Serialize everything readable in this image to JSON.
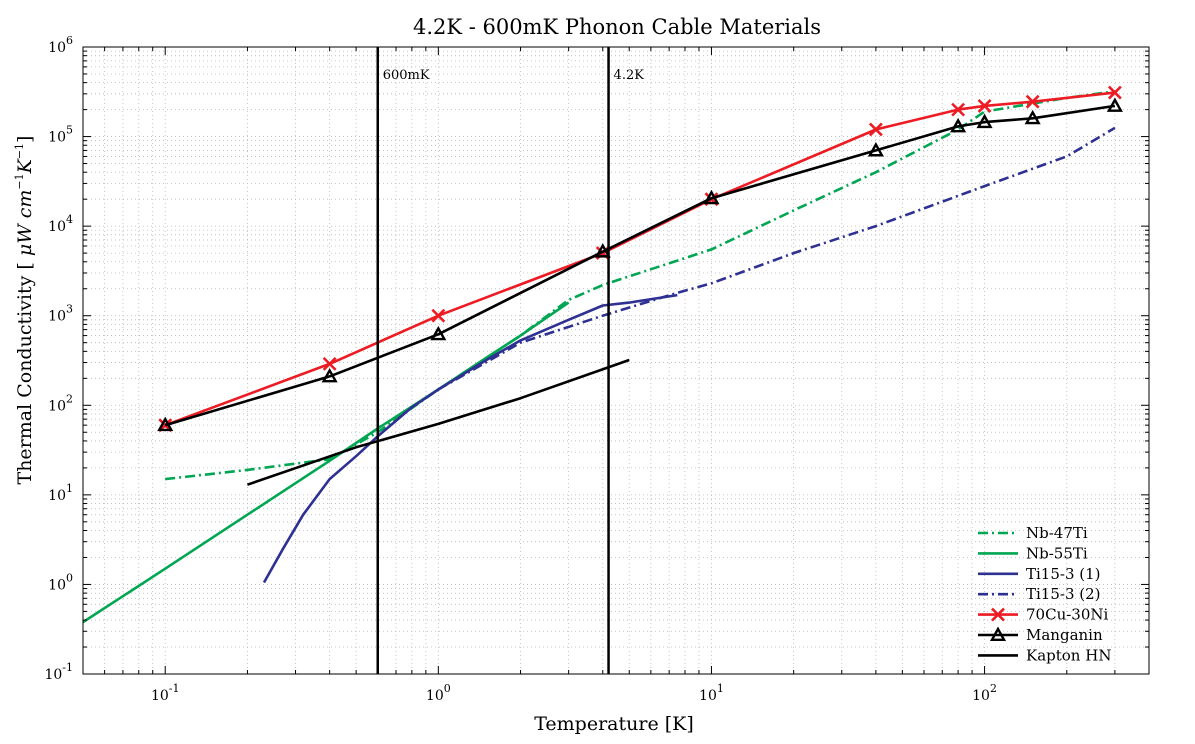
{
  "chart_data": {
    "type": "line",
    "title": "4.2K - 600mK Phonon Cable Materials",
    "xlabel": "Temperature [K]",
    "ylabel_text": "Thermal Conductivity [ ",
    "ylabel_math": "μW cm",
    "ylabel_exp1": "−1",
    "ylabel_k": "K",
    "ylabel_exp2": "−1",
    "ylabel_end": "]",
    "x_scale": "log",
    "y_scale": "log",
    "xlim": [
      0.05,
      400
    ],
    "ylim": [
      0.1,
      1000000
    ],
    "grid": true,
    "legend_position": "bottom-right",
    "x_ticks": [
      {
        "base": "10",
        "exp": "-1",
        "value": 0.1
      },
      {
        "base": "10",
        "exp": "0",
        "value": 1
      },
      {
        "base": "10",
        "exp": "1",
        "value": 10
      },
      {
        "base": "10",
        "exp": "2",
        "value": 100
      }
    ],
    "y_ticks": [
      {
        "base": "10",
        "exp": "-1",
        "value": 0.1
      },
      {
        "base": "10",
        "exp": "0",
        "value": 1
      },
      {
        "base": "10",
        "exp": "1",
        "value": 10
      },
      {
        "base": "10",
        "exp": "2",
        "value": 100
      },
      {
        "base": "10",
        "exp": "3",
        "value": 1000
      },
      {
        "base": "10",
        "exp": "4",
        "value": 10000
      },
      {
        "base": "10",
        "exp": "5",
        "value": 100000
      },
      {
        "base": "10",
        "exp": "6",
        "value": 1000000
      }
    ],
    "annotations": [
      {
        "x": 0.6,
        "label": "600mK"
      },
      {
        "x": 4.2,
        "label": "4.2K"
      }
    ],
    "series": [
      {
        "name": "Nb-47Ti",
        "color": "#00a651",
        "dash": "dashdot",
        "marker": "none",
        "x": [
          0.1,
          0.2,
          0.4,
          0.6,
          1,
          2,
          3,
          4,
          10,
          20,
          40,
          80,
          100,
          200,
          300
        ],
        "y": [
          15,
          19,
          25,
          50,
          150,
          600,
          1500,
          2200,
          5500,
          15000,
          40000,
          120000,
          190000,
          270000,
          320000
        ]
      },
      {
        "name": "Nb-55Ti",
        "color": "#00a651",
        "dash": "solid",
        "marker": "none",
        "x": [
          0.05,
          0.1,
          0.2,
          0.4,
          0.6,
          1,
          1.5,
          2,
          3
        ],
        "y": [
          0.38,
          1.5,
          6,
          24,
          55,
          150,
          340,
          600,
          1400
        ]
      },
      {
        "name": "Ti15-3 (1)",
        "color": "#2e3192",
        "dash": "solid",
        "marker": "none",
        "x": [
          0.23,
          0.27,
          0.32,
          0.4,
          0.5,
          0.6,
          0.8,
          1,
          1.5,
          2,
          3,
          4,
          5,
          7.5
        ],
        "y": [
          1.05,
          2.5,
          6,
          15,
          27,
          45,
          95,
          150,
          320,
          530,
          900,
          1300,
          1400,
          1700
        ]
      },
      {
        "name": "Ti15-3 (2)",
        "color": "#2e3192",
        "dash": "dashdot",
        "marker": "none",
        "x": [
          1,
          2,
          4,
          7.5,
          10,
          20,
          40,
          100,
          200,
          300
        ],
        "y": [
          150,
          500,
          1000,
          1800,
          2300,
          5000,
          10000,
          28000,
          60000,
          125000
        ]
      },
      {
        "name": "70Cu-30Ni",
        "color": "#ed1c24",
        "dash": "solid",
        "marker": "x",
        "x": [
          0.1,
          0.4,
          1,
          4,
          10,
          40,
          80,
          100,
          150,
          300
        ],
        "y": [
          60,
          290,
          1000,
          5000,
          20000,
          120000,
          200000,
          220000,
          245000,
          310000
        ]
      },
      {
        "name": "Manganin",
        "color": "#000000",
        "dash": "solid",
        "marker": "triangle",
        "x": [
          0.1,
          0.4,
          1,
          4,
          10,
          40,
          80,
          100,
          150,
          300
        ],
        "y": [
          60,
          210,
          620,
          5200,
          20500,
          70000,
          130000,
          145000,
          160000,
          220000
        ]
      },
      {
        "name": "Kapton HN",
        "color": "#000000",
        "dash": "solid",
        "marker": "none",
        "x": [
          0.2,
          0.5,
          1,
          2,
          5
        ],
        "y": [
          13,
          34,
          62,
          120,
          320
        ]
      }
    ]
  }
}
